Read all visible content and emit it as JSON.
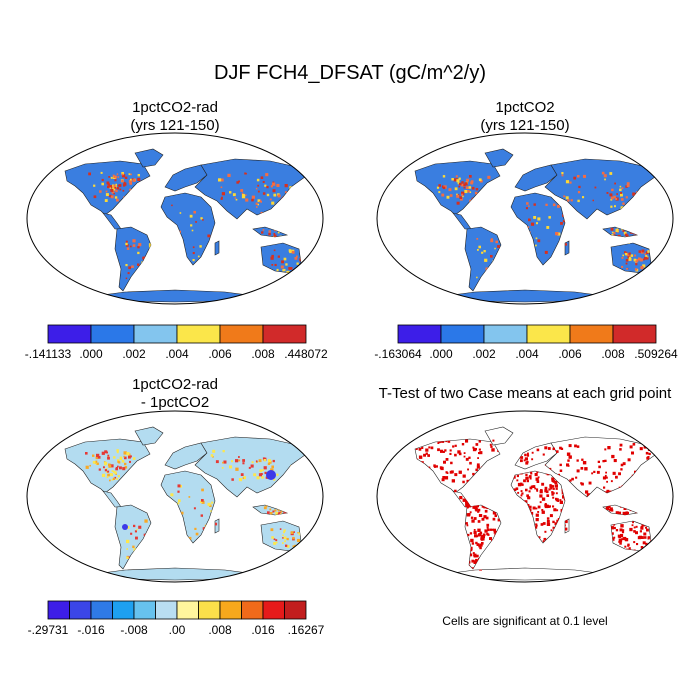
{
  "figure": {
    "title": "DJF FCH4_DFSAT (gC/m^2/y)"
  },
  "panels": [
    {
      "id": "p1",
      "title_line1": "1pctCO2-rad",
      "title_line2": "(yrs 121-150)",
      "land_color": "#3a7ee0",
      "hot_colors": [
        "#d7301f",
        "#f46d43",
        "#fdd835"
      ],
      "cbar_colors": [
        "#3d1ee8",
        "#2b78e8",
        "#83c5ee",
        "#fbe64a",
        "#f07a1a",
        "#d12a2a"
      ],
      "cbar_labels": [
        "-.141133",
        ".000",
        ".002",
        ".004",
        ".006",
        ".008",
        ".448072"
      ]
    },
    {
      "id": "p2",
      "title_line1": "1pctCO2",
      "title_line2": "(yrs 121-150)",
      "land_color": "#3a7ee0",
      "hot_colors": [
        "#d7301f",
        "#f46d43",
        "#fdd835"
      ],
      "cbar_colors": [
        "#3d1ee8",
        "#2b78e8",
        "#83c5ee",
        "#fbe64a",
        "#f07a1a",
        "#d12a2a"
      ],
      "cbar_labels": [
        "-.163064",
        ".000",
        ".002",
        ".004",
        ".006",
        ".008",
        ".509264"
      ]
    },
    {
      "id": "p3",
      "title_line1": "1pctCO2-rad",
      "title_line2": "- 1pctCO2",
      "land_color": "#b3dcf0",
      "hot_colors": [
        "#fde74c",
        "#f9a825",
        "#e53935"
      ],
      "cbar_colors": [
        "#3d1ee8",
        "#3b46e8",
        "#2f7ae6",
        "#1ea0f0",
        "#67c2ee",
        "#b9def2",
        "#fff59d",
        "#fbe04a",
        "#f7a81c",
        "#f06a1a",
        "#e61a1a",
        "#c21e1e"
      ],
      "cbar_labels": [
        "-.29731",
        "-.016",
        "-.008",
        ".00",
        ".008",
        ".016",
        ".16267"
      ]
    },
    {
      "id": "p4",
      "title_line1": "T-Test of two Case means at each grid point",
      "title_line2": "",
      "land_color": "#ffffff",
      "hot_colors": [
        "#e00000"
      ],
      "footnote": "Cells are significant at 0.1 level"
    }
  ],
  "chart_data": [
    {
      "type": "heatmap",
      "title": "1pctCO2-rad (yrs 121-150)",
      "colorbar_levels": [
        -0.141133,
        0.0,
        0.002,
        0.004,
        0.006,
        0.008,
        0.448072
      ],
      "colorbar_labels": [
        "-.141133",
        ".000",
        ".002",
        ".004",
        ".006",
        ".008",
        ".448072"
      ],
      "projection": "robinson"
    },
    {
      "type": "heatmap",
      "title": "1pctCO2 (yrs 121-150)",
      "colorbar_levels": [
        -0.163064,
        0.0,
        0.002,
        0.004,
        0.006,
        0.008,
        0.509264
      ],
      "colorbar_labels": [
        "-.163064",
        ".000",
        ".002",
        ".004",
        ".006",
        ".008",
        ".509264"
      ],
      "projection": "robinson"
    },
    {
      "type": "heatmap",
      "title": "1pctCO2-rad - 1pctCO2",
      "colorbar_levels": [
        -0.29731,
        -0.016,
        -0.008,
        0.0,
        0.008,
        0.016,
        0.16267
      ],
      "colorbar_labels": [
        "-.29731",
        "-.016",
        "-.008",
        ".00",
        ".008",
        ".016",
        ".16267"
      ],
      "projection": "robinson"
    },
    {
      "type": "heatmap",
      "title": "T-Test of two Case means at each grid point",
      "annotation": "Cells are significant at 0.1 level",
      "projection": "robinson"
    }
  ]
}
